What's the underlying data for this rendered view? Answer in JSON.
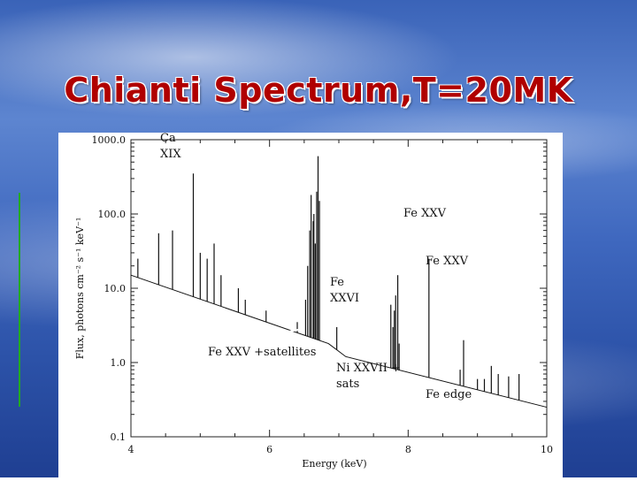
{
  "slide": {
    "title": "Chianti Spectrum,T=20MK",
    "colors": {
      "title": "#b00000",
      "background": "#3a63b8",
      "accent_line": "#22aa22"
    }
  },
  "annotations": {
    "ca_xix_1": "Ca",
    "ca_xix_2": "XIX",
    "fe_xxv_1": "Fe XXV",
    "fe_xxv_2": "Fe XXV",
    "fe_xxvi_1": "Fe",
    "fe_xxvi_2": "XXVI",
    "fe_xxv_sat": "Fe XXV +satellites",
    "ni_xxvii_1": "Ni XXVII +",
    "ni_xxvii_2": "sats",
    "fe_edge": "Fe edge"
  },
  "chart_data": {
    "type": "line",
    "title": "",
    "xlabel": "Energy (keV)",
    "ylabel": "Flux, photons cm⁻² s⁻¹ keV⁻¹",
    "xlim": [
      4,
      10
    ],
    "ylim": [
      0.1,
      1000
    ],
    "yscale": "log",
    "x_ticks": [
      "4",
      "6",
      "8",
      "10"
    ],
    "y_ticks": [
      "0.1",
      "1.0",
      "10.0",
      "100.0",
      "1000.0"
    ],
    "grid": false,
    "continuum": [
      [
        4.0,
        15.0
      ],
      [
        6.85,
        1.8
      ],
      [
        7.1,
        1.2
      ],
      [
        10.0,
        0.25
      ]
    ],
    "lines": [
      {
        "x": 4.1,
        "y": 25
      },
      {
        "x": 4.4,
        "y": 55
      },
      {
        "x": 4.6,
        "y": 60
      },
      {
        "x": 4.9,
        "y": 350
      },
      {
        "x": 5.0,
        "y": 30
      },
      {
        "x": 5.1,
        "y": 25
      },
      {
        "x": 5.2,
        "y": 40
      },
      {
        "x": 5.3,
        "y": 15
      },
      {
        "x": 5.55,
        "y": 10
      },
      {
        "x": 5.65,
        "y": 7
      },
      {
        "x": 5.95,
        "y": 5
      },
      {
        "x": 6.4,
        "y": 3.5
      },
      {
        "x": 6.52,
        "y": 7
      },
      {
        "x": 6.55,
        "y": 20
      },
      {
        "x": 6.58,
        "y": 60
      },
      {
        "x": 6.6,
        "y": 180
      },
      {
        "x": 6.63,
        "y": 80
      },
      {
        "x": 6.64,
        "y": 100
      },
      {
        "x": 6.66,
        "y": 40
      },
      {
        "x": 6.68,
        "y": 200
      },
      {
        "x": 6.7,
        "y": 600
      },
      {
        "x": 6.72,
        "y": 150
      },
      {
        "x": 6.97,
        "y": 3
      },
      {
        "x": 7.75,
        "y": 6
      },
      {
        "x": 7.78,
        "y": 3
      },
      {
        "x": 7.8,
        "y": 5
      },
      {
        "x": 7.82,
        "y": 8
      },
      {
        "x": 7.85,
        "y": 15
      },
      {
        "x": 7.87,
        "y": 1.8
      },
      {
        "x": 8.3,
        "y": 25
      },
      {
        "x": 8.75,
        "y": 0.8
      },
      {
        "x": 8.8,
        "y": 2
      },
      {
        "x": 9.0,
        "y": 0.6
      },
      {
        "x": 9.1,
        "y": 0.6
      },
      {
        "x": 9.2,
        "y": 0.9
      },
      {
        "x": 9.3,
        "y": 0.7
      },
      {
        "x": 9.45,
        "y": 0.65
      },
      {
        "x": 9.6,
        "y": 0.7
      }
    ]
  }
}
